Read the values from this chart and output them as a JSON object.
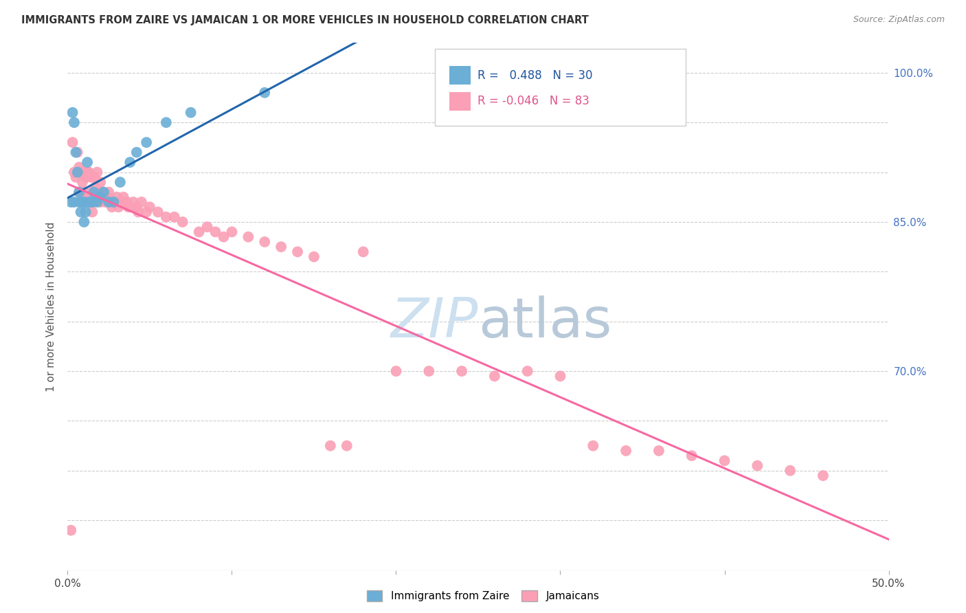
{
  "title": "IMMIGRANTS FROM ZAIRE VS JAMAICAN 1 OR MORE VEHICLES IN HOUSEHOLD CORRELATION CHART",
  "source": "Source: ZipAtlas.com",
  "ylabel": "1 or more Vehicles in Household",
  "xlim": [
    0.0,
    0.5
  ],
  "ylim": [
    0.5,
    1.03
  ],
  "x_tick_vals": [
    0.0,
    0.1,
    0.2,
    0.3,
    0.4,
    0.5
  ],
  "x_tick_labels": [
    "0.0%",
    "",
    "",
    "",
    "",
    "50.0%"
  ],
  "y_tick_vals": [
    0.5,
    0.55,
    0.6,
    0.65,
    0.7,
    0.75,
    0.8,
    0.85,
    0.9,
    0.95,
    1.0
  ],
  "y_tick_labels_right": [
    "",
    "",
    "",
    "",
    "70.0%",
    "",
    "",
    "85.0%",
    "",
    "",
    "100.0%"
  ],
  "zaire_color": "#6baed6",
  "jamaican_color": "#fa9fb5",
  "trendline_zaire_color": "#2166ac",
  "trendline_jamaican_color": "#f768a1",
  "R_zaire": 0.488,
  "N_zaire": 30,
  "R_jamaican": -0.046,
  "N_jamaican": 83,
  "watermark_color": "#cce0f0",
  "zaire_x": [
    0.002,
    0.003,
    0.004,
    0.004,
    0.005,
    0.006,
    0.007,
    0.007,
    0.008,
    0.009,
    0.01,
    0.01,
    0.011,
    0.012,
    0.013,
    0.014,
    0.015,
    0.016,
    0.018,
    0.02,
    0.022,
    0.025,
    0.028,
    0.032,
    0.038,
    0.042,
    0.048,
    0.06,
    0.075,
    0.12
  ],
  "zaire_y": [
    0.87,
    0.96,
    0.95,
    0.87,
    0.92,
    0.9,
    0.88,
    0.87,
    0.86,
    0.87,
    0.85,
    0.87,
    0.86,
    0.91,
    0.87,
    0.87,
    0.87,
    0.88,
    0.87,
    0.875,
    0.88,
    0.87,
    0.87,
    0.89,
    0.91,
    0.92,
    0.93,
    0.95,
    0.96,
    0.98
  ],
  "jamaican_x": [
    0.002,
    0.003,
    0.004,
    0.005,
    0.006,
    0.007,
    0.007,
    0.008,
    0.009,
    0.009,
    0.01,
    0.01,
    0.011,
    0.011,
    0.012,
    0.012,
    0.013,
    0.013,
    0.014,
    0.014,
    0.015,
    0.015,
    0.016,
    0.016,
    0.017,
    0.018,
    0.018,
    0.019,
    0.02,
    0.02,
    0.021,
    0.022,
    0.023,
    0.024,
    0.025,
    0.026,
    0.027,
    0.028,
    0.03,
    0.031,
    0.032,
    0.034,
    0.036,
    0.038,
    0.04,
    0.042,
    0.045,
    0.048,
    0.05,
    0.055,
    0.06,
    0.065,
    0.07,
    0.08,
    0.085,
    0.09,
    0.095,
    0.1,
    0.11,
    0.12,
    0.13,
    0.14,
    0.15,
    0.16,
    0.17,
    0.18,
    0.2,
    0.22,
    0.24,
    0.26,
    0.28,
    0.3,
    0.32,
    0.34,
    0.36,
    0.38,
    0.4,
    0.42,
    0.44,
    0.46,
    0.033,
    0.037,
    0.043
  ],
  "jamaican_y": [
    0.54,
    0.93,
    0.9,
    0.895,
    0.92,
    0.905,
    0.88,
    0.9,
    0.89,
    0.87,
    0.9,
    0.88,
    0.895,
    0.875,
    0.9,
    0.87,
    0.9,
    0.875,
    0.895,
    0.87,
    0.88,
    0.86,
    0.895,
    0.87,
    0.885,
    0.9,
    0.875,
    0.88,
    0.89,
    0.87,
    0.88,
    0.875,
    0.87,
    0.875,
    0.88,
    0.87,
    0.865,
    0.87,
    0.875,
    0.865,
    0.87,
    0.875,
    0.87,
    0.865,
    0.87,
    0.865,
    0.87,
    0.86,
    0.865,
    0.86,
    0.855,
    0.855,
    0.85,
    0.84,
    0.845,
    0.84,
    0.835,
    0.84,
    0.835,
    0.83,
    0.825,
    0.82,
    0.815,
    0.625,
    0.625,
    0.82,
    0.7,
    0.7,
    0.7,
    0.695,
    0.7,
    0.695,
    0.625,
    0.62,
    0.62,
    0.615,
    0.61,
    0.605,
    0.6,
    0.595,
    0.87,
    0.865,
    0.86
  ]
}
